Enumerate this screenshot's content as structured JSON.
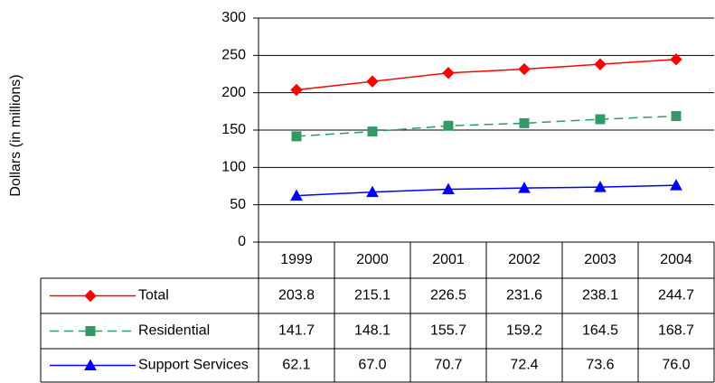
{
  "chart_data": {
    "type": "line",
    "y_label": "Dollars (in millions)",
    "categories": [
      "1999",
      "2000",
      "2001",
      "2002",
      "2003",
      "2004"
    ],
    "series": [
      {
        "name": "Total",
        "color": "#ff0000",
        "marker": "diamond",
        "line_style": "solid",
        "values": [
          203.8,
          215.1,
          226.5,
          231.6,
          238.1,
          244.7
        ],
        "value_labels": [
          "203.8",
          "215.1",
          "226.5",
          "231.6",
          "238.1",
          "244.7"
        ]
      },
      {
        "name": "Residential",
        "color": "#339966",
        "marker": "square",
        "line_style": "dashed",
        "values": [
          141.7,
          148.1,
          155.7,
          159.2,
          164.5,
          168.7
        ],
        "value_labels": [
          "141.7",
          "148.1",
          "155.7",
          "159.2",
          "164.5",
          "168.7"
        ]
      },
      {
        "name": "Support Services",
        "color": "#0000ff",
        "marker": "triangle",
        "line_style": "solid",
        "values": [
          62.1,
          67,
          70.7,
          72.4,
          73.6,
          76
        ],
        "value_labels": [
          "62.1",
          "67.0",
          "70.7",
          "72.4",
          "73.6",
          "76.0"
        ]
      }
    ],
    "ylim": [
      0,
      300
    ],
    "yticks": [
      0,
      50,
      100,
      150,
      200,
      250,
      300
    ],
    "grid": true
  }
}
